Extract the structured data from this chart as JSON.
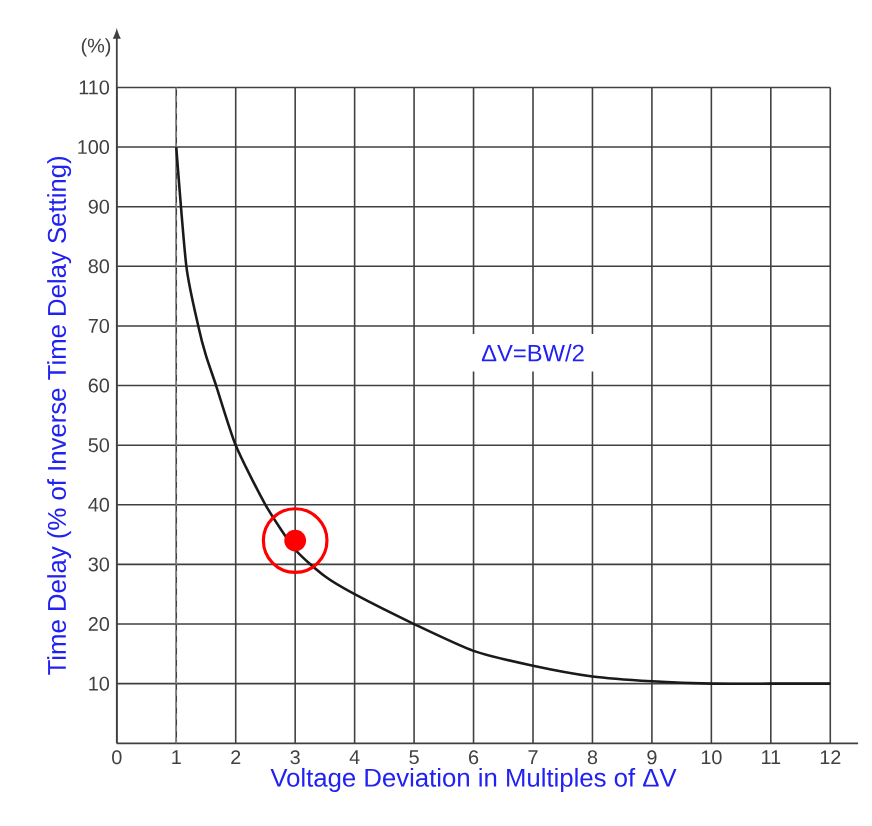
{
  "chart_data": {
    "type": "line",
    "xlabel": "Voltage Deviation in Multiples of ΔV",
    "ylabel": "Time Delay (% of Inverse Time Delay Setting)",
    "xlim": [
      0,
      12
    ],
    "ylim": [
      0,
      110
    ],
    "xticks": [
      0,
      1,
      2,
      3,
      4,
      5,
      6,
      7,
      8,
      9,
      10,
      11,
      12
    ],
    "yticks": [
      10,
      20,
      30,
      40,
      50,
      60,
      70,
      80,
      90,
      100,
      110
    ],
    "grid": true,
    "series": [
      {
        "color": "#1a1a1a",
        "marker": "none",
        "line_style": "solid",
        "x": [
          1,
          1.17,
          1.37,
          1.5,
          1.67,
          2,
          2.5,
          3,
          3.5,
          4,
          5,
          6,
          7,
          8,
          9,
          10,
          11,
          12
        ],
        "values": [
          100,
          80,
          70,
          65,
          60,
          50,
          40,
          32.5,
          28,
          25,
          20,
          15.5,
          13,
          11.2,
          10.4,
          10,
          10,
          10
        ]
      },
      {
        "type": "scatter",
        "color": "#ff0000",
        "marker": "circle",
        "x": [
          3
        ],
        "values": [
          34
        ]
      }
    ],
    "ref_lines": [
      {
        "axis": "x",
        "value": 1,
        "color": "#808080",
        "line_style": "dashed"
      }
    ],
    "annotations": [
      "ΔV=BW/2",
      "(%)"
    ]
  }
}
